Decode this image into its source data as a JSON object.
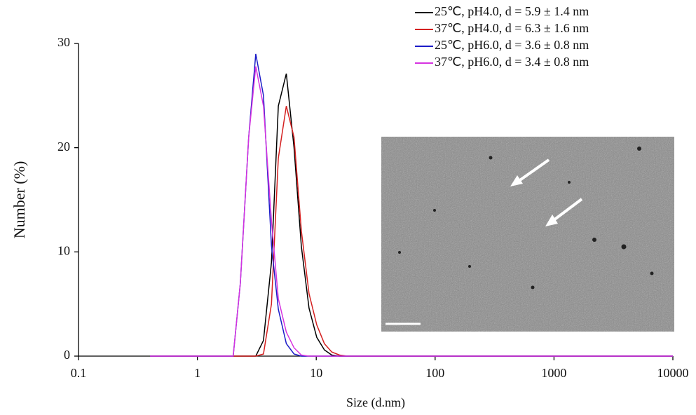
{
  "chart_data": {
    "type": "line",
    "x_label": "Size (d.nm)",
    "y_label": "Number (%)",
    "x_scale": "log",
    "xlim": [
      0.1,
      10000
    ],
    "xticks": [
      0.1,
      1,
      10,
      100,
      1000,
      10000
    ],
    "ylim": [
      0,
      30
    ],
    "yticks": [
      0,
      10,
      20,
      30
    ],
    "legend": "top-right",
    "x": [
      0.4,
      1,
      2,
      2.3,
      2.7,
      3.1,
      3.6,
      4.2,
      4.8,
      5.6,
      6.5,
      7.5,
      8.7,
      10.1,
      11.7,
      13.5,
      15.7,
      18.2,
      25,
      100,
      1000,
      10000
    ],
    "series": [
      {
        "name": "25℃, pH4.0, d = 5.9 ± 1.4 nm",
        "color": "#000000",
        "values": [
          0,
          0,
          0,
          0,
          0,
          0,
          1.5,
          9,
          24,
          27.1,
          20,
          10.5,
          4.6,
          1.8,
          0.6,
          0.1,
          0,
          0,
          0,
          0,
          0,
          0
        ]
      },
      {
        "name": "37℃, pH4.0, d = 6.3 ± 1.6 nm",
        "color": "#d42020",
        "values": [
          0,
          0,
          0,
          0,
          0,
          0,
          0.2,
          5,
          19,
          24,
          21,
          12,
          6,
          3,
          1.2,
          0.4,
          0.1,
          0,
          0,
          0,
          0,
          0
        ]
      },
      {
        "name": "25℃, pH6.0, d = 3.6 ± 0.8 nm",
        "color": "#1c1cc8",
        "values": [
          0,
          0,
          0,
          7,
          21,
          29,
          25,
          10.6,
          4.5,
          1.2,
          0.2,
          0,
          0,
          0,
          0,
          0,
          0,
          0,
          0,
          0,
          0,
          0
        ]
      },
      {
        "name": "37℃, pH6.0, d = 3.4 ± 0.8 nm",
        "color": "#d633e0",
        "values": [
          0,
          0,
          0,
          7,
          21,
          27.8,
          24,
          13,
          5.5,
          2.3,
          0.8,
          0.1,
          0,
          0,
          0,
          0,
          0,
          0,
          0,
          0,
          0,
          0
        ]
      }
    ]
  }
}
